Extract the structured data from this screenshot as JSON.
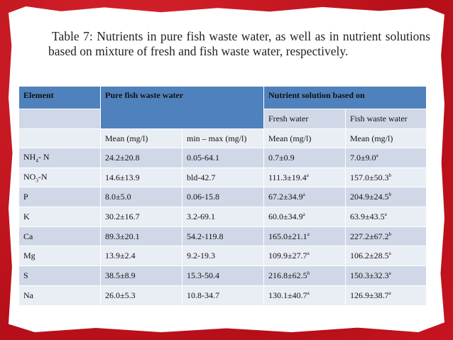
{
  "caption": "Table 7: Nutrients in pure fish waste water, as well as in nutrient solutions based on mixture of fresh and fish waste water, respectively.",
  "table": {
    "header": {
      "element": "Element",
      "pure": "Pure fish waste water",
      "nutrient": "Nutrient solution based on",
      "fresh": "Fresh water",
      "fish": "Fish waste water"
    },
    "units": [
      "",
      "Mean (mg/l)",
      "min – max (mg/l)",
      "Mean (mg/l)",
      "Mean (mg/l)"
    ],
    "rows": [
      [
        {
          "text": "NH",
          "sub": "4",
          "tail": "- N"
        },
        {
          "text": "24.2±20.8"
        },
        {
          "text": "0.05-64.1"
        },
        {
          "text": "0.7±0.9"
        },
        {
          "text": "7.0±9.0",
          "sup": "a"
        }
      ],
      [
        {
          "text": "NO",
          "sub": "3",
          "tail": "-N"
        },
        {
          "text": "14.6±13.9"
        },
        {
          "text": "bld-42.7"
        },
        {
          "text": "111.3±19.4",
          "sup": "a"
        },
        {
          "text": "157.0±50.3",
          "sup": "b"
        }
      ],
      [
        {
          "text": "P"
        },
        {
          "text": "8.0±5.0"
        },
        {
          "text": "0.06-15.8"
        },
        {
          "text": "67.2±34.9",
          "sup": "a"
        },
        {
          "text": "204.9±24.5",
          "sup": "b"
        }
      ],
      [
        {
          "text": "K"
        },
        {
          "text": "30.2±16.7"
        },
        {
          "text": "3.2-69.1"
        },
        {
          "text": "60.0±34.9",
          "sup": "a"
        },
        {
          "text": "63.9±43.5",
          "sup": "a"
        }
      ],
      [
        {
          "text": "Ca"
        },
        {
          "text": "89.3±20.1"
        },
        {
          "text": "54.2-119.8"
        },
        {
          "text": "165.0±21.1",
          "sup": "a"
        },
        {
          "text": "227.2±67.2",
          "sup": "b"
        }
      ],
      [
        {
          "text": "Mg"
        },
        {
          "text": "13.9±2.4"
        },
        {
          "text": "9.2-19.3"
        },
        {
          "text": "109.9±27.7",
          "sup": "a"
        },
        {
          "text": "106.2±28.5",
          "sup": "a"
        }
      ],
      [
        {
          "text": "S"
        },
        {
          "text": "38.5±8.9"
        },
        {
          "text": "15.3-50.4"
        },
        {
          "text": "216.8±62.5",
          "sup": "b"
        },
        {
          "text": "150.3±32.3",
          "sup": "a"
        }
      ],
      [
        {
          "text": "Na"
        },
        {
          "text": "26.0±5.3"
        },
        {
          "text": "10.8-34.7"
        },
        {
          "text": "130.1±40.7",
          "sup": "a"
        },
        {
          "text": "126.9±38.7",
          "sup": "a"
        }
      ]
    ]
  }
}
